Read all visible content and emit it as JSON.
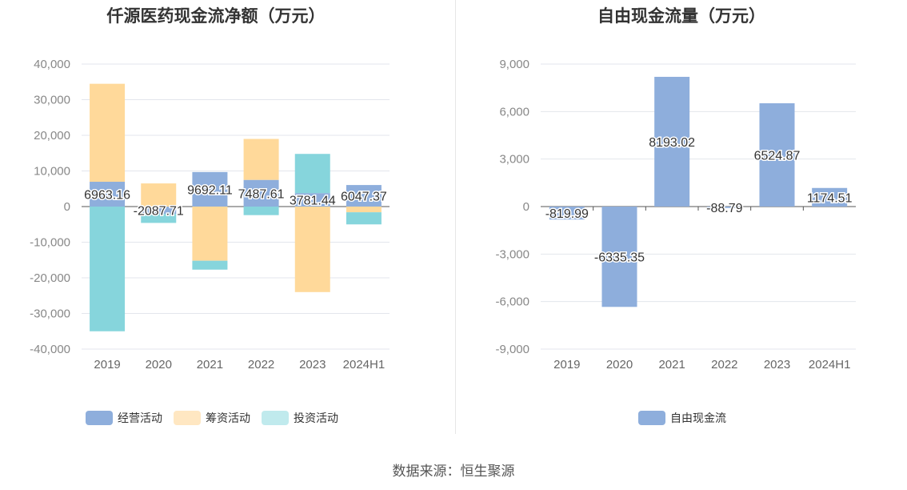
{
  "source": "数据来源：恒生聚源",
  "colors": {
    "operating": "#8eaedc",
    "financing": "#ffd99a",
    "investing": "#86d5dc",
    "free_cash_flow": "#8eaedc"
  },
  "chart_data": [
    {
      "type": "bar",
      "stacked": true,
      "title": "仟源医药现金流净额（万元）",
      "categories": [
        "2019",
        "2020",
        "2021",
        "2022",
        "2023",
        "2024H1"
      ],
      "ylim": [
        -40000,
        40000
      ],
      "yticks": [
        "40,000",
        "30,000",
        "20,000",
        "10,000",
        "0",
        "-10,000",
        "-20,000",
        "-30,000",
        "-40,000"
      ],
      "series": [
        {
          "name": "经营活动",
          "values": [
            6963.16,
            -2087.71,
            9692.11,
            7487.61,
            3781.44,
            6047.37
          ]
        },
        {
          "name": "筹资活动",
          "values": [
            27500,
            6500,
            -15200,
            11500,
            -24000,
            -1600
          ]
        },
        {
          "name": "投资活动",
          "values": [
            -35000,
            -2500,
            -2500,
            -2400,
            11000,
            -3400
          ]
        }
      ],
      "data_labels": [
        "6963.16",
        "-2087.71",
        "9692.11",
        "7487.61",
        "3781.44",
        "6047.37"
      ],
      "legend": "bottom",
      "grid": true
    },
    {
      "type": "bar",
      "title": "自由现金流量（万元）",
      "categories": [
        "2019",
        "2020",
        "2021",
        "2022",
        "2023",
        "2024H1"
      ],
      "ylim": [
        -9000,
        9000
      ],
      "yticks": [
        "9,000",
        "6,000",
        "3,000",
        "0",
        "-3,000",
        "-6,000",
        "-9,000"
      ],
      "series": [
        {
          "name": "自由现金流",
          "values": [
            -819.99,
            -6335.35,
            8193.02,
            -88.79,
            6524.87,
            1174.51
          ]
        }
      ],
      "data_labels": [
        "-819.99",
        "-6335.35",
        "8193.02",
        "-88.79",
        "6524.87",
        "1174.51"
      ],
      "legend": "bottom",
      "grid": true
    }
  ]
}
